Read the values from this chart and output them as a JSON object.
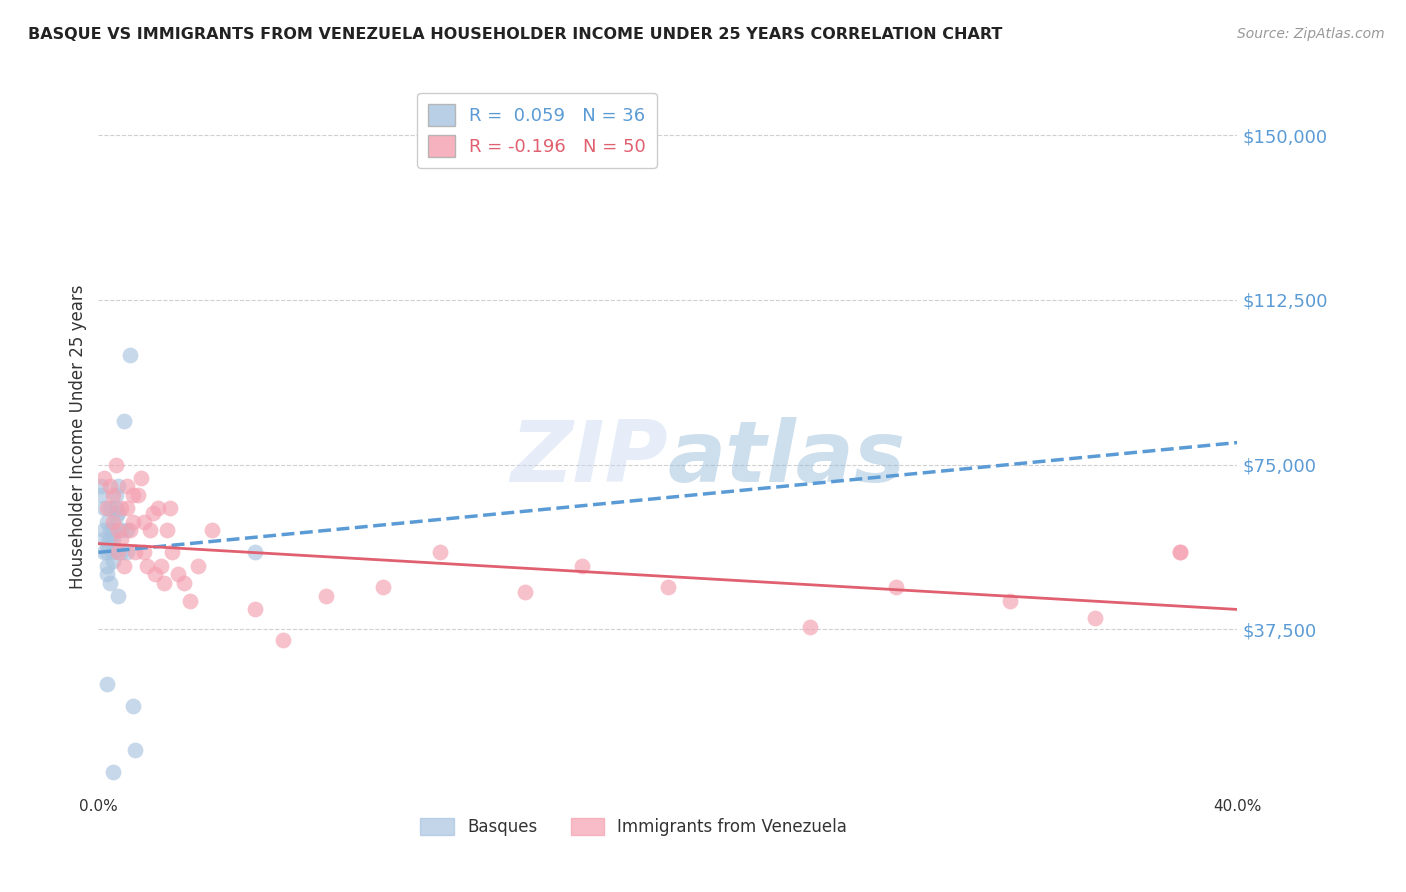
{
  "title": "BASQUE VS IMMIGRANTS FROM VENEZUELA HOUSEHOLDER INCOME UNDER 25 YEARS CORRELATION CHART",
  "source": "Source: ZipAtlas.com",
  "ylabel": "Householder Income Under 25 years",
  "xlim": [
    0.0,
    0.4
  ],
  "ylim": [
    0,
    162500
  ],
  "yticks": [
    0,
    37500,
    75000,
    112500,
    150000
  ],
  "ytick_labels": [
    "",
    "$37,500",
    "$75,000",
    "$112,500",
    "$150,000"
  ],
  "xticks": [
    0.0,
    0.05,
    0.1,
    0.15,
    0.2,
    0.25,
    0.3,
    0.35,
    0.4
  ],
  "xtick_labels": [
    "0.0%",
    "",
    "",
    "",
    "",
    "",
    "",
    "",
    "40.0%"
  ],
  "basque_color": "#a8c4e0",
  "venezuela_color": "#f4a0b0",
  "trend_blue_color": "#5b9bd5",
  "trend_pink_color": "#e06070",
  "basque_label": "Basques",
  "venezuela_label": "Immigrants from Venezuela",
  "N_basque": 36,
  "N_venezuela": 50,
  "blue_trend_x": [
    0.0,
    0.4
  ],
  "blue_trend_y": [
    55000,
    80000
  ],
  "pink_trend_x": [
    0.0,
    0.4
  ],
  "pink_trend_y": [
    57000,
    42000
  ],
  "basque_x": [
    0.001,
    0.001,
    0.002,
    0.002,
    0.002,
    0.002,
    0.003,
    0.003,
    0.003,
    0.003,
    0.003,
    0.004,
    0.004,
    0.004,
    0.004,
    0.005,
    0.005,
    0.005,
    0.005,
    0.006,
    0.006,
    0.006,
    0.007,
    0.007,
    0.008,
    0.008,
    0.009,
    0.01,
    0.01,
    0.011,
    0.012,
    0.013,
    0.055,
    0.003,
    0.005,
    0.007
  ],
  "basque_y": [
    68000,
    70000,
    65000,
    60000,
    58000,
    55000,
    62000,
    57000,
    55000,
    52000,
    50000,
    65000,
    60000,
    58000,
    48000,
    60000,
    58000,
    55000,
    53000,
    68000,
    65000,
    63000,
    70000,
    64000,
    60000,
    55000,
    85000,
    60000,
    55000,
    100000,
    20000,
    10000,
    55000,
    25000,
    5000,
    45000
  ],
  "venezuela_x": [
    0.002,
    0.003,
    0.004,
    0.005,
    0.005,
    0.006,
    0.007,
    0.007,
    0.008,
    0.008,
    0.009,
    0.01,
    0.01,
    0.011,
    0.012,
    0.012,
    0.013,
    0.014,
    0.015,
    0.016,
    0.016,
    0.017,
    0.018,
    0.019,
    0.02,
    0.021,
    0.022,
    0.023,
    0.024,
    0.025,
    0.026,
    0.028,
    0.03,
    0.032,
    0.035,
    0.04,
    0.055,
    0.065,
    0.08,
    0.1,
    0.12,
    0.15,
    0.17,
    0.2,
    0.25,
    0.28,
    0.32,
    0.35,
    0.38,
    0.38
  ],
  "venezuela_y": [
    72000,
    65000,
    70000,
    62000,
    68000,
    75000,
    60000,
    55000,
    65000,
    58000,
    52000,
    70000,
    65000,
    60000,
    68000,
    62000,
    55000,
    68000,
    72000,
    55000,
    62000,
    52000,
    60000,
    64000,
    50000,
    65000,
    52000,
    48000,
    60000,
    65000,
    55000,
    50000,
    48000,
    44000,
    52000,
    60000,
    42000,
    35000,
    45000,
    47000,
    55000,
    46000,
    52000,
    47000,
    38000,
    47000,
    44000,
    40000,
    55000,
    55000
  ],
  "background_color": "#ffffff",
  "grid_color": "#d0d0d0",
  "title_color": "#222222",
  "ytick_color": "#5b9bd5"
}
